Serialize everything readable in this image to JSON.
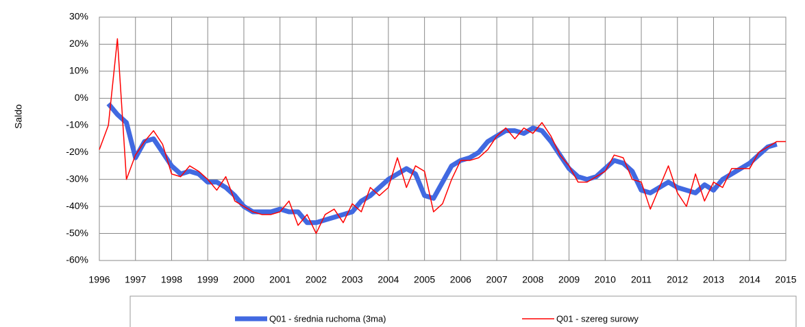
{
  "chart_data": {
    "type": "line",
    "y_label": "Saldo",
    "x": [
      1996,
      1996.25,
      1996.5,
      1996.75,
      1997,
      1997.25,
      1997.5,
      1997.75,
      1998,
      1998.25,
      1998.5,
      1998.75,
      1999,
      1999.25,
      1999.5,
      1999.75,
      2000,
      2000.25,
      2000.5,
      2000.75,
      2001,
      2001.25,
      2001.5,
      2001.75,
      2002,
      2002.25,
      2002.5,
      2002.75,
      2003,
      2003.25,
      2003.5,
      2003.75,
      2004,
      2004.25,
      2004.5,
      2004.75,
      2005,
      2005.25,
      2005.5,
      2005.75,
      2006,
      2006.25,
      2006.5,
      2006.75,
      2007,
      2007.25,
      2007.5,
      2007.75,
      2008,
      2008.25,
      2008.5,
      2008.75,
      2009,
      2009.25,
      2009.5,
      2009.75,
      2010,
      2010.25,
      2010.5,
      2010.75,
      2011,
      2011.25,
      2011.5,
      2011.75,
      2012,
      2012.25,
      2012.5,
      2012.75,
      2013,
      2013.25,
      2013.5,
      2013.75,
      2014,
      2014.25,
      2014.5,
      2014.75,
      2015
    ],
    "series": [
      {
        "name": "Q01 - średnia ruchoma (3ma)",
        "color": "#4169e1",
        "values": [
          null,
          -2,
          -6,
          -9,
          -22,
          -16,
          -15,
          -20,
          -25,
          -28,
          -27,
          -28,
          -31,
          -31,
          -33,
          -36,
          -40,
          -42,
          -42,
          -42,
          -41,
          -42,
          -42,
          -46,
          -46,
          -45,
          -44,
          -43,
          -42,
          -38,
          -36,
          -33,
          -30,
          -28,
          -26,
          -28,
          -36,
          -37,
          -31,
          -25,
          -23,
          -22,
          -20,
          -16,
          -14,
          -12,
          -12,
          -13,
          -11,
          -12,
          -16,
          -21,
          -26,
          -29,
          -30,
          -29,
          -26,
          -23,
          -24,
          -27,
          -34,
          -35,
          -33,
          -31,
          -33,
          -34,
          -35,
          -32,
          -34,
          -30,
          -28,
          -26,
          -24,
          -21,
          -18,
          -17,
          null
        ]
      },
      {
        "name": "Q01 - szereg surowy",
        "color": "#ff0000",
        "values": [
          -19,
          -10,
          22,
          -30,
          -21,
          -16,
          -12,
          -17,
          -28,
          -29,
          -25,
          -27,
          -30,
          -34,
          -29,
          -38,
          -40,
          -42,
          -43,
          -43,
          -42,
          -38,
          -47,
          -43,
          -50,
          -43,
          -41,
          -46,
          -39,
          -42,
          -33,
          -36,
          -33,
          -22,
          -33,
          -25,
          -27,
          -42,
          -39,
          -30,
          -23,
          -23,
          -22,
          -19,
          -14,
          -11,
          -15,
          -11,
          -13,
          -9,
          -14,
          -21,
          -25,
          -31,
          -31,
          -29,
          -27,
          -21,
          -22,
          -30,
          -31,
          -41,
          -33,
          -25,
          -35,
          -40,
          -28,
          -38,
          -31,
          -33,
          -26,
          -26,
          -26,
          -20,
          -18,
          -16,
          -16
        ]
      }
    ],
    "xlim": [
      1996,
      2015
    ],
    "xticks": [
      1996,
      1997,
      1998,
      1999,
      2000,
      2001,
      2002,
      2003,
      2004,
      2005,
      2006,
      2007,
      2008,
      2009,
      2010,
      2011,
      2012,
      2013,
      2014,
      2015
    ],
    "ylim": [
      -60,
      30
    ],
    "yticks": [
      {
        "value": -60,
        "label": "-60%"
      },
      {
        "value": -50,
        "label": "-50%"
      },
      {
        "value": -40,
        "label": "-40%"
      },
      {
        "value": -30,
        "label": "-30%"
      },
      {
        "value": -20,
        "label": "-20%"
      },
      {
        "value": -10,
        "label": "-10%"
      },
      {
        "value": 0,
        "label": "0%"
      },
      {
        "value": 10,
        "label": "10%"
      },
      {
        "value": 20,
        "label": "20%"
      },
      {
        "value": 30,
        "label": "30%"
      }
    ],
    "grid": true,
    "legend": "bottom"
  }
}
